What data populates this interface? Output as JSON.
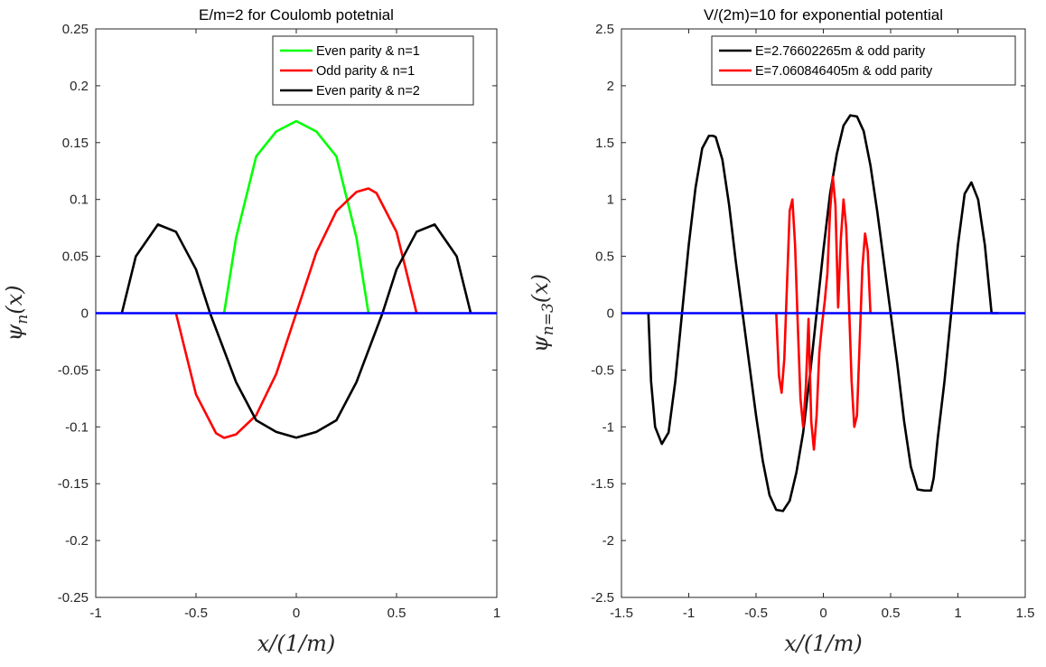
{
  "chart_data": [
    {
      "type": "line",
      "title": "E/m=2 for Coulomb potetnial",
      "xlabel": "x/(1/m)",
      "ylabel": "ψ_n(x)",
      "ylabel_parts": {
        "base": "ψ",
        "sub": "n",
        "rest": "(x)"
      },
      "xlim": [
        -1,
        1
      ],
      "ylim": [
        -0.25,
        0.25
      ],
      "xticks": [
        -1,
        -0.5,
        0,
        0.5,
        1
      ],
      "xtick_labels": [
        "-1",
        "-0.5",
        "0",
        "0.5",
        "1"
      ],
      "yticks": [
        -0.25,
        -0.2,
        -0.15,
        -0.1,
        -0.05,
        0,
        0.05,
        0.1,
        0.15,
        0.2,
        0.25
      ],
      "ytick_labels": [
        "-0.25",
        "-0.2",
        "-0.15",
        "-0.1",
        "-0.05",
        "0",
        "0.05",
        "0.1",
        "0.15",
        "0.2",
        "0.25"
      ],
      "grid": false,
      "legend_position": "top-right",
      "baseline": {
        "x": [
          -1,
          1
        ],
        "y": [
          0,
          0
        ],
        "color": "#0000ff"
      },
      "series": [
        {
          "name": "Even parity & n=1",
          "color": "#00ff00",
          "x": [
            -0.36,
            -0.3,
            -0.2,
            -0.1,
            0,
            0.1,
            0.2,
            0.3,
            0.36
          ],
          "y": [
            0,
            0.0665,
            0.1379,
            0.1598,
            0.1689,
            0.1598,
            0.1379,
            0.0665,
            0
          ]
        },
        {
          "name": "Odd parity & n=1",
          "color": "#ff0000",
          "x": [
            -0.6,
            -0.5,
            -0.4,
            -0.36,
            -0.3,
            -0.2,
            -0.1,
            0,
            0.1,
            0.2,
            0.3,
            0.36,
            0.4,
            0.5,
            0.6
          ],
          "y": [
            0,
            -0.0715,
            -0.1056,
            -0.1097,
            -0.1066,
            -0.0898,
            -0.0534,
            0,
            0.0534,
            0.0898,
            0.1066,
            0.1097,
            0.1056,
            0.0715,
            0
          ]
        },
        {
          "name": "Even parity & n=2",
          "color": "#000000",
          "x": [
            -0.87,
            -0.8,
            -0.69,
            -0.6,
            -0.5,
            -0.43,
            -0.3,
            -0.2,
            -0.1,
            0,
            0.1,
            0.2,
            0.3,
            0.43,
            0.5,
            0.6,
            0.69,
            0.8,
            0.87
          ],
          "y": [
            0,
            0.05,
            0.078,
            0.0716,
            0.0385,
            0,
            -0.0607,
            -0.0942,
            -0.1044,
            -0.1095,
            -0.1044,
            -0.0942,
            -0.0607,
            0,
            0.0385,
            0.0716,
            0.078,
            0.05,
            0
          ]
        }
      ]
    },
    {
      "type": "line",
      "title": "V/(2m)=10 for exponential potential",
      "xlabel": "x/(1/m)",
      "ylabel": "ψ_{n=3}(x)",
      "ylabel_parts": {
        "base": "ψ",
        "sub": "n=3",
        "rest": "(x)"
      },
      "xlim": [
        -1.5,
        1.5
      ],
      "ylim": [
        -2.5,
        2.5
      ],
      "xticks": [
        -1.5,
        -1,
        -0.5,
        0,
        0.5,
        1,
        1.5
      ],
      "xtick_labels": [
        "-1.5",
        "-1",
        "-0.5",
        "0",
        "0.5",
        "1",
        "1.5"
      ],
      "yticks": [
        -2.5,
        -2,
        -1.5,
        -1,
        -0.5,
        0,
        0.5,
        1,
        1.5,
        2,
        2.5
      ],
      "ytick_labels": [
        "-2.5",
        "-2",
        "-1.5",
        "-1",
        "-0.5",
        "0",
        "0.5",
        "1",
        "1.5",
        "2",
        "2.5"
      ],
      "grid": false,
      "legend_position": "top-right",
      "baseline": {
        "x": [
          -1.5,
          1.5
        ],
        "y": [
          0,
          0
        ],
        "color": "#0000ff"
      },
      "series": [
        {
          "name": "E=2.76602265m   & odd parity",
          "color": "#000000",
          "x": [
            -1.3,
            -1.28,
            -1.25,
            -1.2,
            -1.15,
            -1.1,
            -1.05,
            -1.0,
            -0.95,
            -0.9,
            -0.85,
            -0.82,
            -0.8,
            -0.75,
            -0.7,
            -0.65,
            -0.6,
            -0.55,
            -0.5,
            -0.45,
            -0.4,
            -0.35,
            -0.3,
            -0.25,
            -0.2,
            -0.15,
            -0.1,
            -0.05,
            0,
            0.05,
            0.1,
            0.15,
            0.2,
            0.25,
            0.3,
            0.35,
            0.4,
            0.45,
            0.5,
            0.55,
            0.6,
            0.65,
            0.7,
            0.75,
            0.8,
            0.82,
            0.85,
            0.9,
            0.95,
            1.0,
            1.05,
            1.1,
            1.15,
            1.2,
            1.25,
            1.28,
            1.3
          ],
          "y": [
            0,
            -0.6,
            -1.0,
            -1.15,
            -1.05,
            -0.6,
            0,
            0.6,
            1.1,
            1.45,
            1.56,
            1.56,
            1.55,
            1.35,
            0.95,
            0.45,
            0.0,
            -0.45,
            -0.9,
            -1.3,
            -1.6,
            -1.73,
            -1.74,
            -1.65,
            -1.4,
            -1.05,
            -0.55,
            0,
            0.55,
            1.05,
            1.4,
            1.65,
            1.74,
            1.73,
            1.6,
            1.3,
            0.9,
            0.45,
            0.0,
            -0.45,
            -0.95,
            -1.35,
            -1.55,
            -1.56,
            -1.56,
            -1.45,
            -1.1,
            -0.6,
            0,
            0.6,
            1.05,
            1.15,
            1.0,
            0.6,
            0,
            0,
            0
          ]
        },
        {
          "name": "E=7.060846405m & odd parity",
          "color": "#ff0000",
          "x": [
            -0.35,
            -0.33,
            -0.31,
            -0.29,
            -0.27,
            -0.25,
            -0.23,
            -0.21,
            -0.19,
            -0.17,
            -0.15,
            -0.13,
            -0.11,
            -0.09,
            -0.07,
            -0.05,
            -0.03,
            -0.01,
            0.01,
            0.03,
            0.05,
            0.07,
            0.09,
            0.11,
            0.13,
            0.15,
            0.17,
            0.19,
            0.21,
            0.23,
            0.25,
            0.27,
            0.29,
            0.31,
            0.33,
            0.35
          ],
          "y": [
            0,
            -0.55,
            -0.7,
            -0.4,
            0.25,
            0.9,
            1.0,
            0.6,
            -0.1,
            -0.75,
            -1.0,
            -0.65,
            -0.05,
            -0.95,
            -1.2,
            -0.9,
            -0.35,
            -0.1,
            0.1,
            0.35,
            0.9,
            1.2,
            0.95,
            0.05,
            0.65,
            1.0,
            0.75,
            0.1,
            -0.6,
            -1.0,
            -0.9,
            -0.25,
            0.4,
            0.7,
            0.55,
            0
          ]
        }
      ]
    }
  ]
}
